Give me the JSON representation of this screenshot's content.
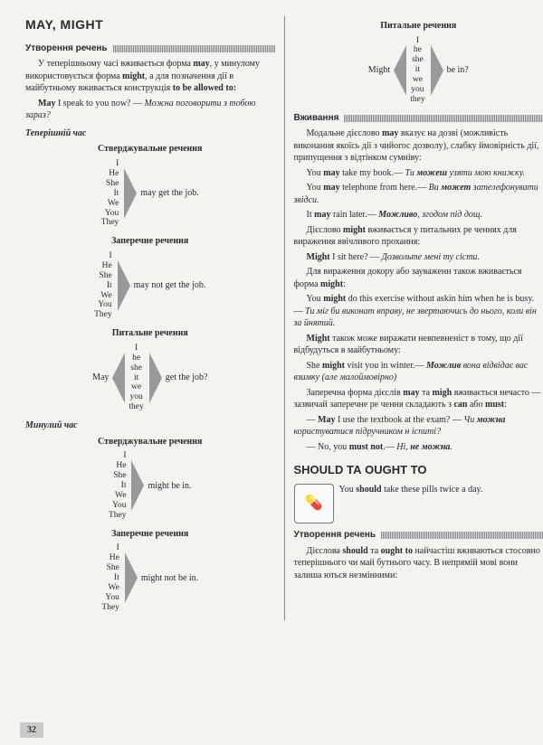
{
  "left": {
    "title": "MAY, MIGHT",
    "section_formation": "Утворення речень",
    "intro1": "У теперішньому часі вживається форма <b>may</b>, у минулому використовується форма <b>might</b>, а для позначення дії в майбутньому вживається конструкція <b>to be allowed to:</b>",
    "intro2": "<b>May</b> I speak to you now? — <i>Можна погово­рити з тобою зараз?</i>",
    "present_label": "Теперішній час",
    "affirm_label": "Стверджувальне речення",
    "neg_label": "Заперечне речення",
    "quest_label": "Питальне речення",
    "past_label": "Минулий час",
    "pronouns7": [
      "I",
      "He",
      "She",
      "It",
      "We",
      "You",
      "They"
    ],
    "pronouns7_lc": [
      "I",
      "he",
      "she",
      "it",
      "we",
      "you",
      "they"
    ],
    "may_get": "may get the job.",
    "may_not_get": "may not get the job.",
    "may_q_left": "May",
    "get_job_q": "get the job?",
    "might_be_in": "might be in.",
    "might_not_be_in": "might not be in.",
    "page_num": "32"
  },
  "right": {
    "quest_label": "Питальне речення",
    "might_q_left": "Might",
    "be_in_q": "be in?",
    "pronouns7_lc": [
      "I",
      "he",
      "she",
      "it",
      "we",
      "you",
      "they"
    ],
    "usage_label": "Вживання",
    "p1": "Модальне дієслово <b>may</b> вказує на дозві (можливість виконання якоїсь дії з чийогос дозволу), слабку ймовірність дії, припуще­ння з відтінком сумніву:",
    "p2": "You <b>may</b> take my book.— <i>Ти <b>можеш</b> узя­ти мою книжку.</i>",
    "p3": "You <b>may</b> telephone from here.— <i>Ви <b>может</b> зателефонувати звідси.</i>",
    "p4": "It <b>may</b> rain later.— <i><b>Можливо</b>, згодом під дощ.</i>",
    "p5": "Дієслово <b>might</b> вживається у питальних ре ченнях для вираження ввічливого прохання:",
    "p6": "<b>Might</b> I sit here? — <i>Дозвольте мені ту сісти.</i>",
    "p7": "Для вираження докору або зауваженн також вживається форма <b>might</b>:",
    "p8": "You <b>might</b> do this exercise without askin him when he is busy.— <i>Ти міг би виконат вправу, не звертаючись до нього, коли він за йнятий.</i>",
    "p9": "<b>Might</b> також може виражати невпевненіст в тому, що дії відбудуться в майбутньому:",
    "p10": "She <b>might</b> visit you in winter.— <i><b>Можлив</b> вона відвідає вас взимку (але малоймовірно)</i>",
    "p11": "Заперечна форма дієслів <b>may</b> та <b>migh</b> вживається нечасто — зазвичай заперечне ре чення складають з <b>can</b> або <b>must</b>:",
    "p12": "— <b>May</b> I use the textbook at the exam? — <i>Чи <b>можна</b> користуватися підручником н іспиті?</i>",
    "p13": "— No, you <b>must not</b>.— <i>Ні, <b>не можна</b>.</i>",
    "should_title": "SHOULD ТА OUGHT TO",
    "pills_text": "You <b>should</b> take these pills twice a day.",
    "section_formation": "Утворення речень",
    "should_p": "Дієслова <b>should</b> та <b>ought to</b> найчастіш вживаються стосовно теперішнього чи май бутнього часу. В непрямій мові вони залиша ються незмінними:"
  },
  "colors": {
    "triangle": "#999999",
    "bar": "#888888"
  }
}
